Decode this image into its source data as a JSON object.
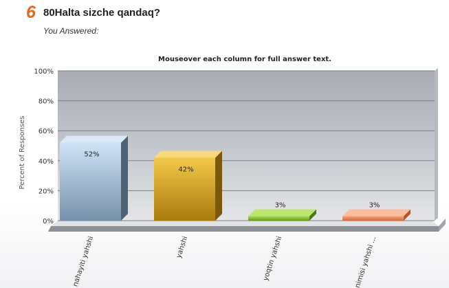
{
  "question": {
    "number": "6",
    "text": "80Halta sizche qandaq?",
    "answered_label": "You Answered:"
  },
  "colors": {
    "number": "#e8671b",
    "plot_background": "#c9ccd3",
    "bar_1": "#9fbad6",
    "bar_2": "#d9a21d",
    "bar_3": "#89c32c",
    "bar_4": "#f28a57"
  },
  "chart_data": {
    "type": "bar",
    "title": "Mouseover each column for full answer text.",
    "xlabel": "",
    "ylabel": "Percent of Responses",
    "ylim": [
      0,
      100
    ],
    "yticks": [
      "0%",
      "20%",
      "40%",
      "60%",
      "80%",
      "100%"
    ],
    "grid": true,
    "categories": [
      "nahayiti yahshi",
      "yahshi",
      "yoqtin yahshi",
      "nimisi yahshi ..."
    ],
    "values": [
      52,
      42,
      3,
      3
    ],
    "data_labels": [
      "52%",
      "42%",
      "3%",
      "3%"
    ]
  }
}
